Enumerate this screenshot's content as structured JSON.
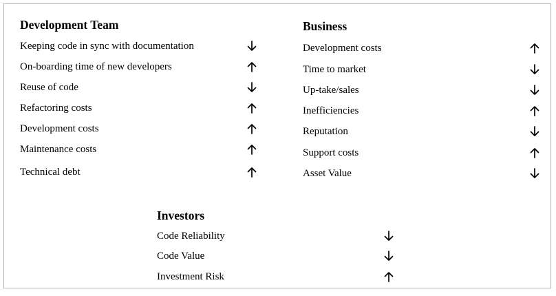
{
  "groups": [
    {
      "title": "Development Team",
      "items": [
        {
          "label": "Keeping code in sync with documentation",
          "trend": "down"
        },
        {
          "label": "On-boarding time of new developers",
          "trend": "up"
        },
        {
          "label": "Reuse of code",
          "trend": "down"
        },
        {
          "label": "Refactoring costs",
          "trend": "up"
        },
        {
          "label": "Development costs",
          "trend": "up"
        },
        {
          "label": "Maintenance costs",
          "trend": "up"
        },
        {
          "label": "Technical debt",
          "trend": "up"
        }
      ]
    },
    {
      "title": "Business",
      "items": [
        {
          "label": "Development costs",
          "trend": "up"
        },
        {
          "label": "Time to market",
          "trend": "down"
        },
        {
          "label": "Up-take/sales",
          "trend": "down"
        },
        {
          "label": "Inefficiencies",
          "trend": "up"
        },
        {
          "label": "Reputation",
          "trend": "down"
        },
        {
          "label": "Support costs",
          "trend": "up"
        },
        {
          "label": "Asset Value",
          "trend": "down"
        }
      ]
    },
    {
      "title": "Investors",
      "items": [
        {
          "label": "Code Reliability",
          "trend": "down"
        },
        {
          "label": "Code Value",
          "trend": "down"
        },
        {
          "label": "Investment Risk",
          "trend": "up"
        }
      ]
    }
  ],
  "icons": {
    "up": "arrow-up-icon",
    "down": "arrow-down-icon"
  },
  "colors": {
    "text": "#000000",
    "border": "#b5b5b5",
    "background": "#ffffff"
  }
}
